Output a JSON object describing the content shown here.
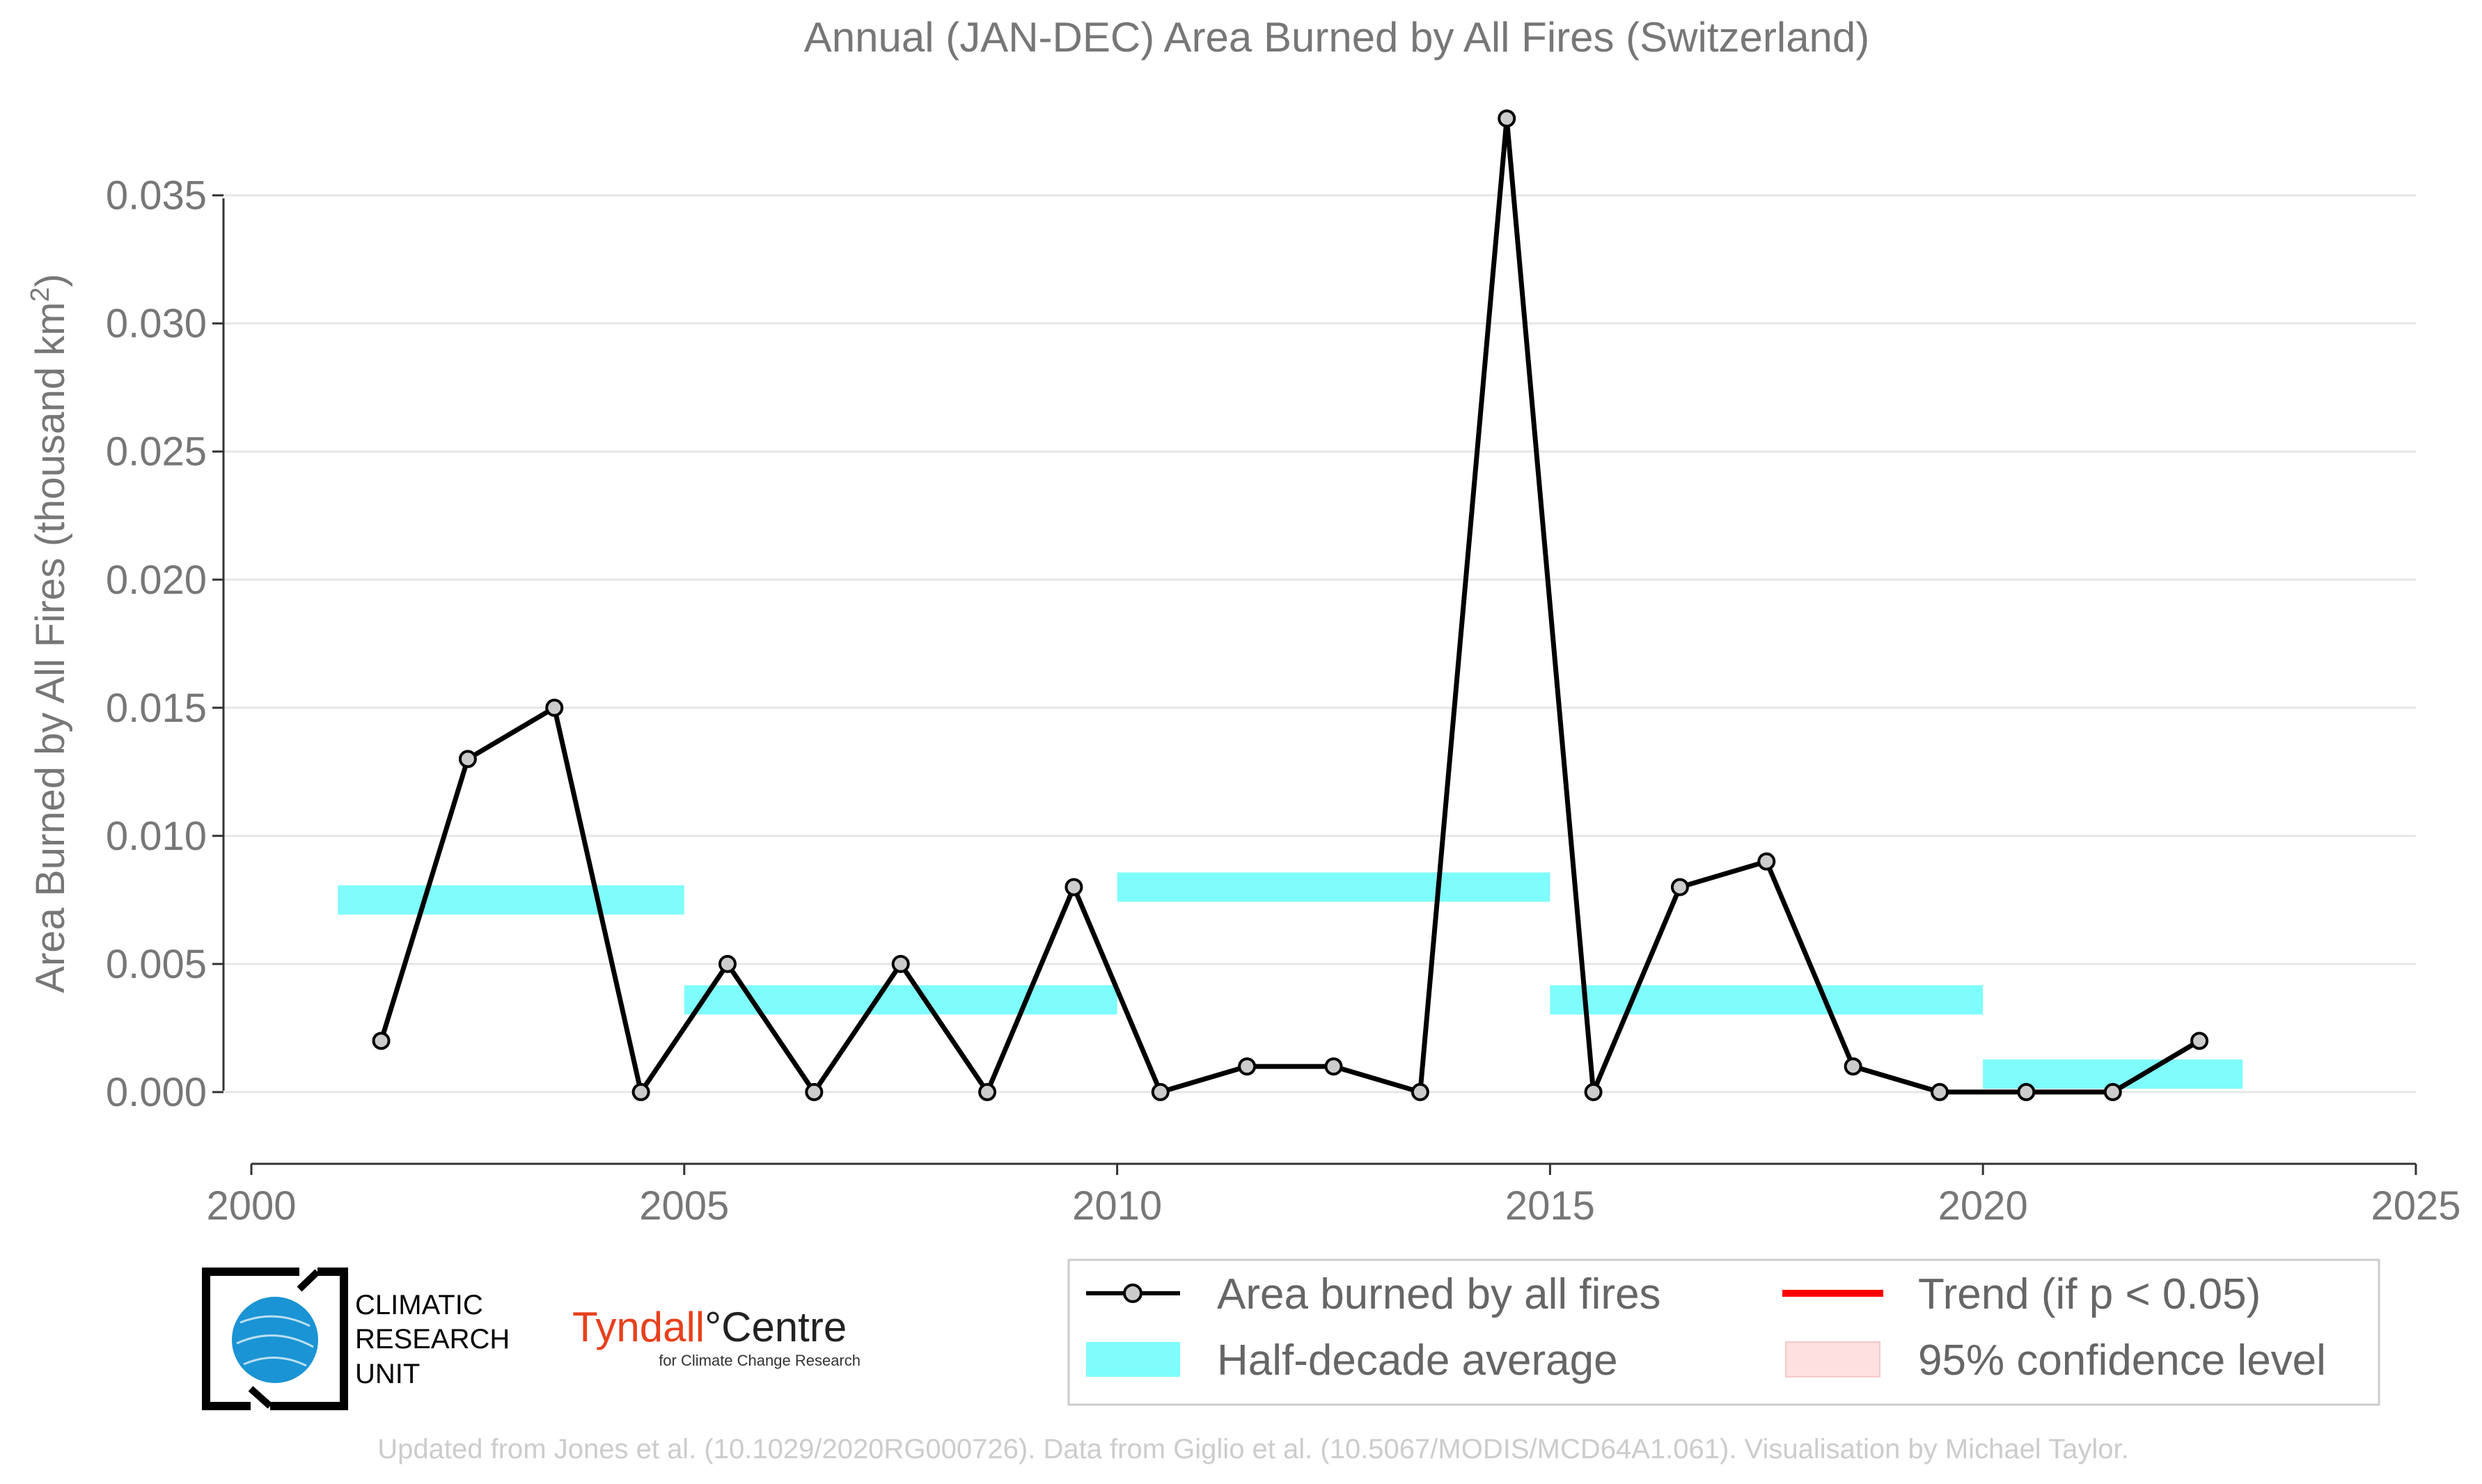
{
  "chart_data": {
    "type": "line",
    "title": "Annual (JAN-DEC) Area Burned by All Fires (Switzerland)",
    "ylabel": "Area Burned by All Fires (thousand km",
    "ylabel_sup": "2",
    "ylabel_close": ")",
    "xlabel": "",
    "xlim": [
      2000,
      2025
    ],
    "ylim": [
      -0.0028,
      0.0395
    ],
    "xticks": [
      "2000",
      "2005",
      "2010",
      "2015",
      "2020",
      "2025"
    ],
    "xtick_values": [
      2000,
      2005,
      2010,
      2015,
      2020,
      2025
    ],
    "yticks": [
      "0.000",
      "0.005",
      "0.010",
      "0.015",
      "0.020",
      "0.025",
      "0.030",
      "0.035"
    ],
    "ytick_values": [
      0,
      0.005,
      0.01,
      0.015,
      0.02,
      0.025,
      0.03,
      0.035
    ],
    "grid": "horizontal",
    "series": [
      {
        "name": "Area burned by all fires",
        "x": [
          2001.5,
          2002.5,
          2003.5,
          2004.5,
          2005.5,
          2006.5,
          2007.5,
          2008.5,
          2009.5,
          2010.5,
          2011.5,
          2012.5,
          2013.5,
          2014.5,
          2015.5,
          2016.5,
          2017.5,
          2018.5,
          2019.5,
          2020.5,
          2021.5,
          2022.5
        ],
        "values": [
          0.002,
          0.013,
          0.015,
          0.0,
          0.005,
          0.0,
          0.005,
          0.0,
          0.008,
          0.0,
          0.001,
          0.001,
          0.0,
          0.038,
          0.0,
          0.008,
          0.009,
          0.001,
          0.0,
          0.0,
          0.0,
          0.002
        ],
        "color": "#000000",
        "marker_fill": "#cccccc"
      }
    ],
    "half_decade_average": {
      "name": "Half-decade average",
      "color": "#7ffcfc",
      "bars": [
        {
          "x0": 2001,
          "x1": 2005,
          "value": 0.0075
        },
        {
          "x0": 2005,
          "x1": 2010,
          "value": 0.0036
        },
        {
          "x0": 2010,
          "x1": 2015,
          "value": 0.008
        },
        {
          "x0": 2015,
          "x1": 2020,
          "value": 0.0036
        },
        {
          "x0": 2020,
          "x1": 2023,
          "value": 0.0007
        }
      ]
    },
    "legend": {
      "placement": "bottom-right",
      "items": [
        {
          "label": "Area burned by all fires",
          "kind": "line-marker",
          "color": "#000000"
        },
        {
          "label": "Trend (if p < 0.05)",
          "kind": "line",
          "color": "#ff0000"
        },
        {
          "label": "Half-decade average",
          "kind": "band",
          "color": "#7ffcfc"
        },
        {
          "label": "95% confidence level",
          "kind": "patch",
          "color": "#ffe0e0"
        }
      ]
    }
  },
  "logos": {
    "cru_line1": "CLIMATIC",
    "cru_line2": "RESEARCH",
    "cru_line3": "UNIT",
    "tyndall_main": "Tyndall",
    "tyndall_degree": "°",
    "tyndall_centre": "Centre",
    "tyndall_sub": "for Climate Change Research"
  },
  "footer": "Updated from Jones et al. (10.1029/2020RG000726). Data from Giglio et al. (10.5067/MODIS/MCD64A1.061). Visualisation by Michael Taylor."
}
